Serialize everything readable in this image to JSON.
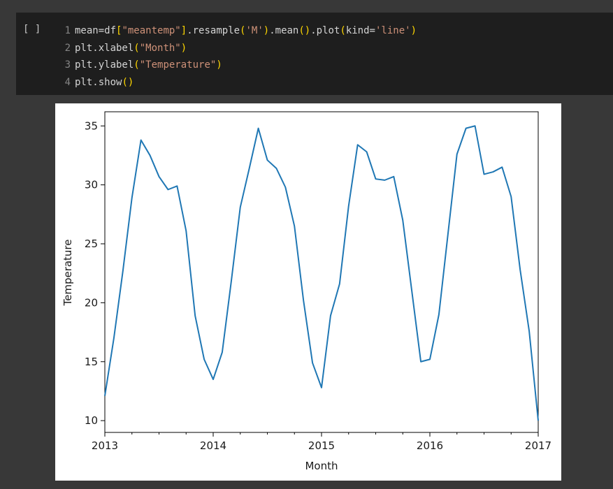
{
  "cell": {
    "run_label": "[ ]",
    "lines": [
      {
        "num": "1",
        "tokens": [
          {
            "t": "mean=df",
            "c": "plain"
          },
          {
            "t": "[",
            "c": "paren"
          },
          {
            "t": "\"meantemp\"",
            "c": "str"
          },
          {
            "t": "]",
            "c": "paren"
          },
          {
            "t": ".resample",
            "c": "plain"
          },
          {
            "t": "(",
            "c": "paren"
          },
          {
            "t": "'M'",
            "c": "str"
          },
          {
            "t": ")",
            "c": "paren"
          },
          {
            "t": ".mean",
            "c": "plain"
          },
          {
            "t": "()",
            "c": "paren"
          },
          {
            "t": ".plot",
            "c": "plain"
          },
          {
            "t": "(",
            "c": "paren"
          },
          {
            "t": "kind=",
            "c": "plain"
          },
          {
            "t": "'line'",
            "c": "str"
          },
          {
            "t": ")",
            "c": "paren"
          }
        ]
      },
      {
        "num": "2",
        "tokens": [
          {
            "t": "plt.xlabel",
            "c": "plain"
          },
          {
            "t": "(",
            "c": "paren"
          },
          {
            "t": "\"Month\"",
            "c": "str"
          },
          {
            "t": ")",
            "c": "paren"
          }
        ]
      },
      {
        "num": "3",
        "tokens": [
          {
            "t": "plt.ylabel",
            "c": "plain"
          },
          {
            "t": "(",
            "c": "paren"
          },
          {
            "t": "\"Temperature\"",
            "c": "str"
          },
          {
            "t": ")",
            "c": "paren"
          }
        ]
      },
      {
        "num": "4",
        "tokens": [
          {
            "t": "plt.show",
            "c": "plain"
          },
          {
            "t": "()",
            "c": "paren"
          }
        ]
      }
    ]
  },
  "colors": {
    "line": "#1f77b4",
    "string": "#ce9178",
    "paren": "#ffd700",
    "code": "#d4d4d4"
  },
  "chart_data": {
    "type": "line",
    "xlabel": "Month",
    "ylabel": "Temperature",
    "x": [
      "2013-01",
      "2013-02",
      "2013-03",
      "2013-04",
      "2013-05",
      "2013-06",
      "2013-07",
      "2013-08",
      "2013-09",
      "2013-10",
      "2013-11",
      "2013-12",
      "2014-01",
      "2014-02",
      "2014-03",
      "2014-04",
      "2014-05",
      "2014-06",
      "2014-07",
      "2014-08",
      "2014-09",
      "2014-10",
      "2014-11",
      "2014-12",
      "2015-01",
      "2015-02",
      "2015-03",
      "2015-04",
      "2015-05",
      "2015-06",
      "2015-07",
      "2015-08",
      "2015-09",
      "2015-10",
      "2015-11",
      "2015-12",
      "2016-01",
      "2016-02",
      "2016-03",
      "2016-04",
      "2016-05",
      "2016-06",
      "2016-07",
      "2016-08",
      "2016-09",
      "2016-10",
      "2016-11",
      "2016-12",
      "2017-01"
    ],
    "series": [
      {
        "values": [
          12.1,
          17.0,
          22.7,
          28.9,
          33.8,
          32.5,
          30.7,
          29.6,
          29.9,
          26.1,
          18.9,
          15.2,
          13.5,
          15.8,
          21.8,
          28.1,
          31.4,
          34.8,
          32.1,
          31.4,
          29.8,
          26.5,
          20.2,
          14.9,
          12.8,
          18.9,
          21.6,
          28.2,
          33.4,
          32.8,
          30.5,
          30.4,
          30.7,
          27.0,
          21.0,
          15.0,
          15.2,
          19.0,
          25.8,
          32.6,
          34.8,
          35.0,
          30.9,
          31.1,
          31.5,
          29.0,
          22.8,
          17.6,
          10.0
        ]
      }
    ],
    "xlim": [
      "2013-01",
      "2017-01"
    ],
    "ylim": [
      9.0,
      36.2
    ],
    "x_ticks": [
      "2013",
      "2014",
      "2015",
      "2016",
      "2017"
    ],
    "y_ticks": [
      "10",
      "15",
      "20",
      "25",
      "30",
      "35"
    ],
    "grid": false
  }
}
